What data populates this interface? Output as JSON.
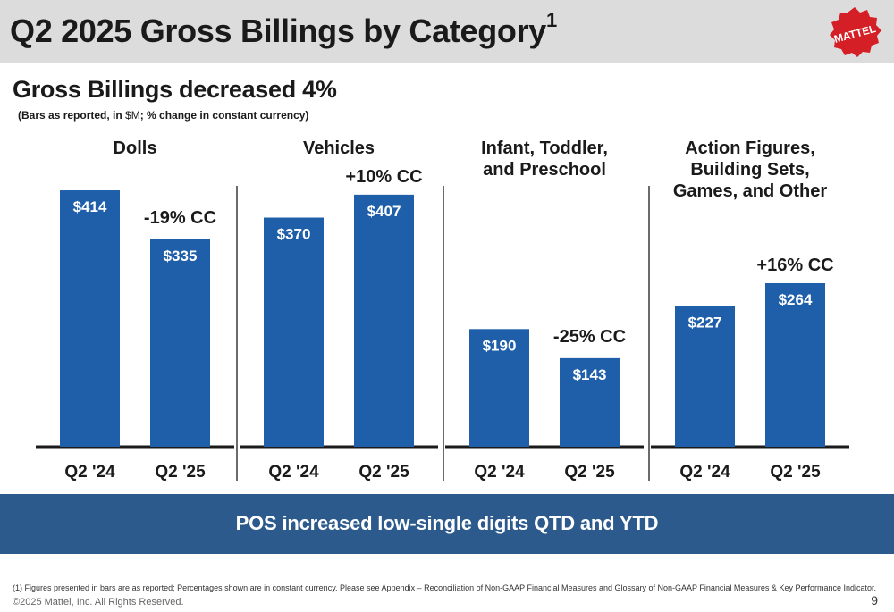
{
  "header": {
    "title": "Q2 2025 Gross Billings by Category",
    "title_sup": "1",
    "logo_text": "MATTEL"
  },
  "subtitle": "Gross Billings decreased 4%",
  "note_prefix": "(Bars as reported, in ",
  "note_unit": "$M",
  "note_suffix": "; % change in constant currency)",
  "banner": "POS increased low-single digits QTD and YTD",
  "footnote": "(1)   Figures presented in bars are as reported; Percentages shown are in constant currency. Please see Appendix – Reconciliation of Non-GAAP Financial Measures and Glossary of Non-GAAP Financial Measures & Key Performance Indicator.",
  "copyright": "©2025 Mattel, Inc.  All Rights Reserved.",
  "page_number": "9",
  "colors": {
    "bar": "#1f5faa",
    "banner": "#2c5a8c",
    "header": "#dcdcdc",
    "logo": "#d51f26"
  },
  "chart_data": {
    "type": "bar",
    "unit": "$M",
    "categories": [
      "Q2 '24",
      "Q2 '25"
    ],
    "ylim": [
      0,
      450
    ],
    "grid": false,
    "legend": "none",
    "panels": [
      {
        "title": [
          "Dolls"
        ],
        "values": [
          414,
          335
        ],
        "labels": [
          "$414",
          "$335"
        ],
        "change": "-19% CC"
      },
      {
        "title": [
          "Vehicles"
        ],
        "values": [
          370,
          407
        ],
        "labels": [
          "$370",
          "$407"
        ],
        "change": "+10% CC"
      },
      {
        "title": [
          "Infant, Toddler,",
          "and Preschool"
        ],
        "values": [
          190,
          143
        ],
        "labels": [
          "$190",
          "$143"
        ],
        "change": "-25% CC"
      },
      {
        "title": [
          "Action Figures,",
          "Building Sets,",
          "Games, and Other"
        ],
        "values": [
          227,
          264
        ],
        "labels": [
          "$227",
          "$264"
        ],
        "change": "+16% CC"
      }
    ]
  }
}
